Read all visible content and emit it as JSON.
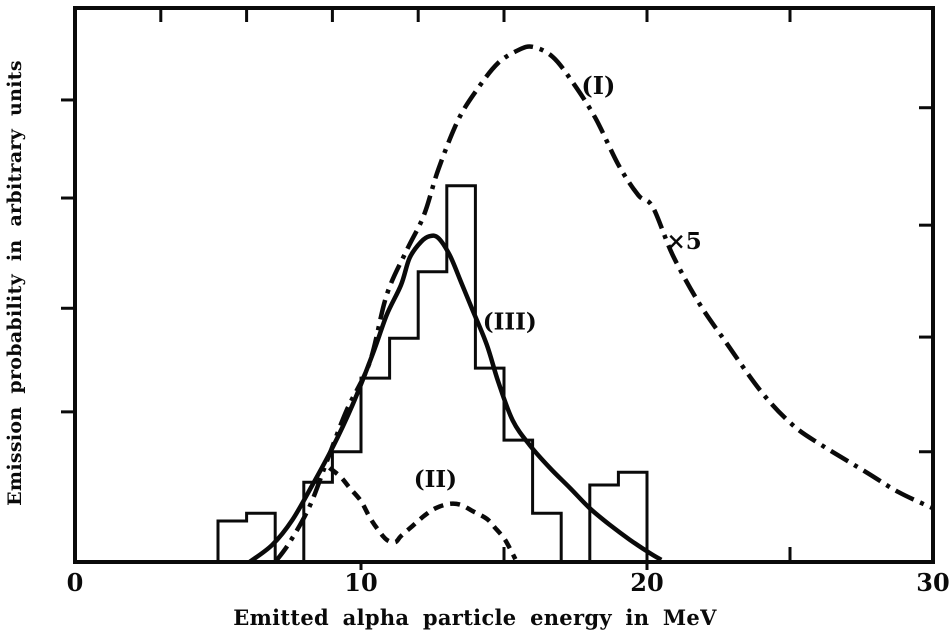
{
  "figure": {
    "background": "#ffffff",
    "ink_color": "#0a0a0a"
  },
  "chart_data": {
    "type": "line",
    "title": "",
    "xlabel": "Emitted alpha particle energy in MeV",
    "ylabel": "Emission probability in arbitrary units",
    "xlim": [
      0,
      30
    ],
    "ylim": [
      0,
      1
    ],
    "grid": false,
    "legend": "inline curve labels",
    "x_tick_labels": [
      {
        "value": 0,
        "label": "0"
      },
      {
        "value": 10,
        "label": "10"
      },
      {
        "value": 20,
        "label": "20"
      },
      {
        "value": 30,
        "label": "30"
      }
    ],
    "x_minor_ticks_bottom": [
      5,
      15,
      25
    ],
    "x_minor_ticks_top": [
      3,
      6,
      9,
      12,
      15,
      20,
      25
    ],
    "y_tick_fractions_left": [
      0.271,
      0.458,
      0.657,
      0.834
    ],
    "y_tick_fractions_right": [
      0.199,
      0.406,
      0.608,
      0.82
    ],
    "series": [
      {
        "name": "(I)",
        "style": "dash-dot",
        "scale_note": "×5",
        "points": [
          [
            7.0,
            0.0
          ],
          [
            7.5,
            0.035
          ],
          [
            8.2,
            0.1
          ],
          [
            8.8,
            0.181
          ],
          [
            9.5,
            0.274
          ],
          [
            10.3,
            0.36
          ],
          [
            10.9,
            0.482
          ],
          [
            11.6,
            0.563
          ],
          [
            12.2,
            0.626
          ],
          [
            12.7,
            0.708
          ],
          [
            13.4,
            0.798
          ],
          [
            14.1,
            0.856
          ],
          [
            14.8,
            0.901
          ],
          [
            15.5,
            0.924
          ],
          [
            16.0,
            0.93
          ],
          [
            16.7,
            0.912
          ],
          [
            17.4,
            0.866
          ],
          [
            18.2,
            0.801
          ],
          [
            19.0,
            0.717
          ],
          [
            19.7,
            0.662
          ],
          [
            20.2,
            0.641
          ],
          [
            20.9,
            0.554
          ],
          [
            21.8,
            0.469
          ],
          [
            22.7,
            0.401
          ],
          [
            24.0,
            0.307
          ],
          [
            25.1,
            0.247
          ],
          [
            26.1,
            0.211
          ],
          [
            27.7,
            0.161
          ],
          [
            28.8,
            0.126
          ],
          [
            30.0,
            0.097
          ]
        ]
      },
      {
        "name": "(II)",
        "style": "dashed",
        "points": [
          [
            8.9,
            0.17
          ],
          [
            9.3,
            0.153
          ],
          [
            9.6,
            0.134
          ],
          [
            10.0,
            0.11
          ],
          [
            10.3,
            0.081
          ],
          [
            10.6,
            0.058
          ],
          [
            10.9,
            0.04
          ],
          [
            11.2,
            0.036
          ],
          [
            11.4,
            0.047
          ],
          [
            11.8,
            0.065
          ],
          [
            12.2,
            0.083
          ],
          [
            12.6,
            0.097
          ],
          [
            13.1,
            0.105
          ],
          [
            13.5,
            0.103
          ],
          [
            13.9,
            0.092
          ],
          [
            14.4,
            0.078
          ],
          [
            14.7,
            0.061
          ],
          [
            15.0,
            0.043
          ],
          [
            15.2,
            0.025
          ],
          [
            15.4,
            0.005
          ]
        ]
      },
      {
        "name": "(III)",
        "style": "solid",
        "points": [
          [
            6.1,
            0.0
          ],
          [
            6.9,
            0.031
          ],
          [
            7.6,
            0.076
          ],
          [
            8.3,
            0.139
          ],
          [
            9.0,
            0.206
          ],
          [
            9.7,
            0.283
          ],
          [
            10.4,
            0.374
          ],
          [
            10.9,
            0.446
          ],
          [
            11.4,
            0.5
          ],
          [
            11.7,
            0.549
          ],
          [
            12.1,
            0.578
          ],
          [
            12.4,
            0.588
          ],
          [
            12.7,
            0.585
          ],
          [
            13.1,
            0.554
          ],
          [
            13.5,
            0.505
          ],
          [
            13.9,
            0.455
          ],
          [
            14.4,
            0.392
          ],
          [
            14.8,
            0.325
          ],
          [
            15.3,
            0.256
          ],
          [
            15.9,
            0.211
          ],
          [
            16.6,
            0.17
          ],
          [
            17.3,
            0.134
          ],
          [
            18.0,
            0.097
          ],
          [
            18.7,
            0.067
          ],
          [
            19.4,
            0.04
          ],
          [
            20.1,
            0.016
          ],
          [
            20.5,
            0.004
          ]
        ]
      },
      {
        "name": "experimental histogram",
        "style": "step-histogram",
        "bin_edges": [
          5,
          6,
          7,
          8,
          9,
          10,
          11,
          12,
          13,
          14,
          15,
          16,
          17,
          18,
          19,
          20
        ],
        "heights": [
          0.074,
          0.088,
          0,
          0.144,
          0.199,
          0.332,
          0.404,
          0.524,
          0.679,
          0.35,
          0.22,
          0.088,
          0,
          0.139,
          0.162
        ]
      }
    ],
    "annotations": [
      {
        "text": "(I)",
        "x": 18.3,
        "y": 0.845,
        "font_px": 24
      },
      {
        "text": "×5",
        "x": 21.3,
        "y": 0.565,
        "font_px": 23
      },
      {
        "text": "(III)",
        "x": 15.2,
        "y": 0.42,
        "font_px": 23
      },
      {
        "text": "(II)",
        "x": 12.6,
        "y": 0.135,
        "font_px": 23
      }
    ]
  }
}
